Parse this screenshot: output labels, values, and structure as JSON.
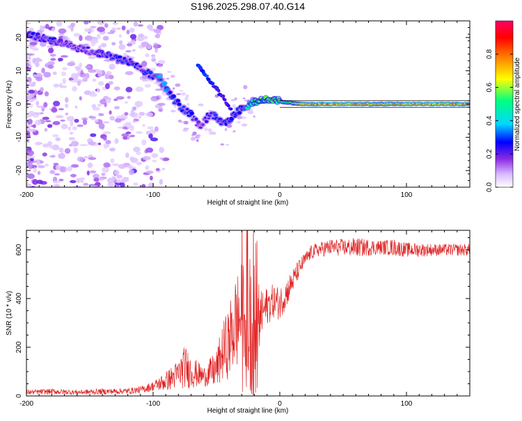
{
  "title": "S196.2025.298.07.40.G14",
  "chart_data": [
    {
      "type": "heatmap",
      "name": "spectrogram",
      "title": "S196.2025.298.07.40.G14",
      "xlabel": "Height of straight line (km)",
      "ylabel": "Frequency (Hz)",
      "xlim": [
        -200,
        150
      ],
      "ylim": [
        -25,
        25
      ],
      "xticks": [
        -200,
        -100,
        0,
        100
      ],
      "xtick_labels": [
        "-200",
        "-100",
        "0",
        "100"
      ],
      "yticks": [
        -20,
        -10,
        0,
        10,
        20
      ],
      "ytick_labels": [
        "-20",
        "-10",
        "0",
        "10",
        "20"
      ],
      "colorbar": {
        "label": "Normalized spectral amplitude",
        "range": [
          0,
          1
        ],
        "ticks": [
          0.0,
          0.2,
          0.4,
          0.6,
          0.8
        ],
        "tick_labels": [
          "0.0",
          "0.2",
          "0.4",
          "0.6",
          "0.8"
        ],
        "colors": [
          "#ffffff",
          "#d8b8ff",
          "#8a2be2",
          "#0000ff",
          "#00d8ff",
          "#00ff80",
          "#ffff00",
          "#ff8000",
          "#ff0000",
          "#ff0066"
        ]
      },
      "ridge": [
        {
          "x": -200,
          "y": 21,
          "a": 0.25
        },
        {
          "x": -180,
          "y": 19,
          "a": 0.25
        },
        {
          "x": -160,
          "y": 17,
          "a": 0.2
        },
        {
          "x": -140,
          "y": 15,
          "a": 0.25
        },
        {
          "x": -120,
          "y": 13,
          "a": 0.3
        },
        {
          "x": -110,
          "y": 11,
          "a": 0.25
        },
        {
          "x": -100,
          "y": 8,
          "a": 0.3
        },
        {
          "x": -95,
          "y": 7.5,
          "a": 0.35
        },
        {
          "x": -90,
          "y": 5,
          "a": 0.35
        },
        {
          "x": -85,
          "y": 2,
          "a": 0.3
        },
        {
          "x": -80,
          "y": 0,
          "a": 0.3
        },
        {
          "x": -75,
          "y": -2,
          "a": 0.3
        },
        {
          "x": -70,
          "y": -3,
          "a": 0.25
        },
        {
          "x": -63,
          "y": -7,
          "a": 0.2
        },
        {
          "x": -55,
          "y": -3,
          "a": 0.25
        },
        {
          "x": -50,
          "y": -4,
          "a": 0.28
        },
        {
          "x": -45,
          "y": -6,
          "a": 0.3
        },
        {
          "x": -40,
          "y": -5,
          "a": 0.25
        },
        {
          "x": -33,
          "y": -2,
          "a": 0.3
        },
        {
          "x": -28,
          "y": -1,
          "a": 0.32
        },
        {
          "x": -22,
          "y": 0.5,
          "a": 0.55
        },
        {
          "x": -15,
          "y": 1,
          "a": 0.6
        },
        {
          "x": -8,
          "y": 1.5,
          "a": 0.62
        },
        {
          "x": -3,
          "y": 1,
          "a": 0.55
        },
        {
          "x": 5,
          "y": 0.5,
          "a": 0.5
        },
        {
          "x": 20,
          "y": 0,
          "a": 0.75
        },
        {
          "x": 50,
          "y": 0,
          "a": 0.8
        },
        {
          "x": 80,
          "y": 0,
          "a": 0.7
        },
        {
          "x": 110,
          "y": 0,
          "a": 0.78
        },
        {
          "x": 150,
          "y": 0,
          "a": 0.75
        }
      ],
      "secondary_ridge": [
        {
          "x": -65,
          "y": 12,
          "a": 0.3
        },
        {
          "x": -55,
          "y": 7,
          "a": 0.28
        },
        {
          "x": -45,
          "y": 2,
          "a": 0.25
        },
        {
          "x": -38,
          "y": -2,
          "a": 0.25
        }
      ]
    },
    {
      "type": "line",
      "name": "snr",
      "xlabel": "Height of straight line (km)",
      "ylabel": "SNR (10 * v/v)",
      "xlim": [
        -200,
        150
      ],
      "ylim": [
        0,
        680
      ],
      "xticks": [
        -200,
        -100,
        0,
        100
      ],
      "xtick_labels": [
        "-200",
        "-100",
        "0",
        "100"
      ],
      "yticks": [
        0,
        200,
        400,
        600
      ],
      "ytick_labels": [
        "0",
        "200",
        "400",
        "600"
      ],
      "color": "#e02020",
      "series": [
        {
          "name": "SNR",
          "x": [
            -200,
            -180,
            -160,
            -140,
            -120,
            -110,
            -100,
            -90,
            -80,
            -75,
            -70,
            -60,
            -50,
            -45,
            -40,
            -35,
            -30,
            -25,
            -22,
            -18,
            -15,
            -10,
            -5,
            0,
            5,
            10,
            15,
            20,
            25,
            30,
            40,
            50,
            60,
            70,
            80,
            90,
            100,
            110,
            120,
            130,
            140,
            150
          ],
          "y": [
            15,
            18,
            15,
            18,
            20,
            25,
            40,
            60,
            90,
            120,
            100,
            80,
            110,
            180,
            220,
            300,
            330,
            350,
            250,
            300,
            330,
            370,
            390,
            380,
            420,
            470,
            520,
            560,
            590,
            600,
            610,
            610,
            610,
            610,
            610,
            610,
            600,
            600,
            600,
            600,
            600,
            600
          ],
          "amplitude": [
            10,
            12,
            10,
            12,
            12,
            15,
            20,
            40,
            60,
            90,
            70,
            40,
            80,
            120,
            150,
            200,
            220,
            260,
            300,
            240,
            100,
            80,
            70,
            70,
            60,
            50,
            40,
            30,
            30,
            30,
            35,
            35,
            40,
            35,
            30,
            35,
            30,
            30,
            25,
            25,
            25,
            25
          ]
        }
      ]
    }
  ]
}
